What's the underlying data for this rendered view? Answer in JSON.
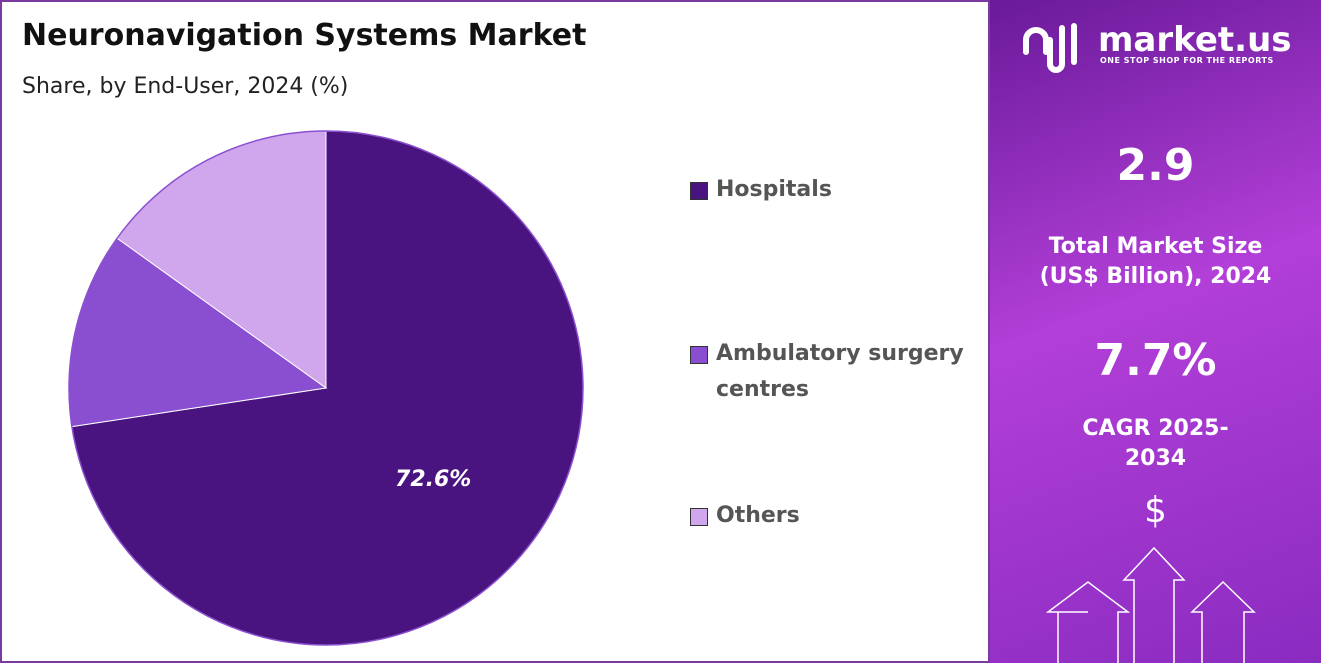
{
  "chart_data": {
    "type": "pie",
    "title": "Neuronavigation Systems Market",
    "subtitle": "Share, by End-User, 2024 (%)",
    "categories": [
      "Hospitals",
      "Ambulatory surgery centres",
      "Others"
    ],
    "values": [
      72.6,
      12.3,
      15.1
    ],
    "value_labels": [
      "72.6%",
      null,
      null
    ],
    "colors": [
      "#4a1480",
      "#8a4fd0",
      "#d0a6ec"
    ]
  },
  "panel": {
    "brand": "market.us",
    "tagline": "ONE STOP SHOP FOR THE REPORTS",
    "market_size": "2.9",
    "market_size_label": "Total Market Size (US$ Billion), 2024",
    "cagr": "7.7%",
    "cagr_label": "CAGR 2025-2034",
    "icon": "$"
  }
}
